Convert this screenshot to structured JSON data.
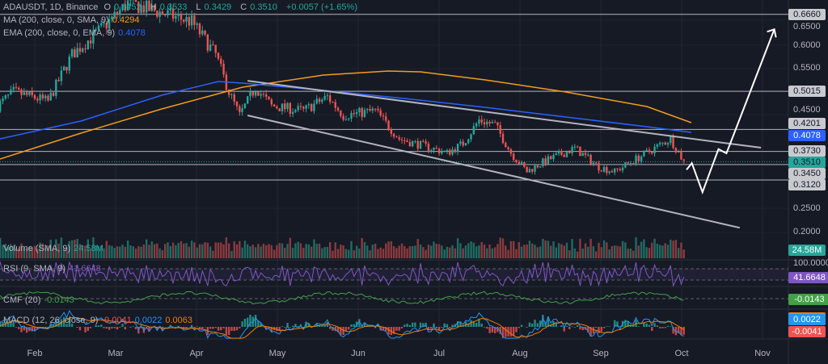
{
  "header": {
    "symbol": "ADAUSDT, 1D, Binance",
    "open_label": "O",
    "open": "0.3452",
    "high_label": "H",
    "high": "0.3533",
    "low_label": "L",
    "low": "0.3429",
    "close_label": "C",
    "close": "0.3510",
    "change": "+0.0057 (+1.65%)"
  },
  "indicators": {
    "ma": {
      "label": "MA (200, close, 0, SMA, 9)",
      "value": "0.4294",
      "color": "#f59c1a"
    },
    "ema": {
      "label": "EMA (200, close, 0, EMA, 9)",
      "value": "0.4078",
      "color": "#2962ff"
    },
    "volume": {
      "label": "Volume (SMA, 9)",
      "value": "24.58M"
    },
    "rsi": {
      "label": "RSI (9, SMA, 9)",
      "value": "41.6648",
      "color": "#7e57c2",
      "top": "100.0000"
    },
    "cmf": {
      "label": "CMF (20)",
      "value": "-0.0143",
      "color": "#43a047"
    },
    "macd": {
      "label": "MACD (12, 26, close, 9)",
      "hist": "-0.0041",
      "macd": "0.0022",
      "signal": "0.0063"
    }
  },
  "price_axis": {
    "ticks": [
      "0.6500",
      "0.6000",
      "0.5500",
      "0.4500",
      "0.2500",
      "0.2000"
    ]
  },
  "tags": {
    "l6660": "0.6660",
    "l5015": "0.5015",
    "l4201": "0.4201",
    "ema": "0.4078",
    "l3730": "0.3730",
    "last": "0.3510",
    "l3450": "0.3450",
    "l3120": "0.3120",
    "vol": "24.58M",
    "rsi": "41.6648",
    "cmf": "-0.0143",
    "macd": "0.0022",
    "hist": "-0.0041"
  },
  "time_axis": [
    "Feb",
    "Mar",
    "Apr",
    "May",
    "Jun",
    "Jul",
    "Aug",
    "Sep",
    "Oct",
    "Nov"
  ],
  "chart_data": {
    "type": "candlestick",
    "symbol": "ADAUSDT",
    "interval": "1D",
    "ylim": [
      0.18,
      0.69
    ],
    "horizontal_levels": [
      0.666,
      0.5015,
      0.4201,
      0.373,
      0.345,
      0.312
    ],
    "trendlines": [
      {
        "from": [
          "2023-04-22",
          0.524
        ],
        "to": [
          "2023-11-01",
          0.381
        ]
      },
      {
        "from": [
          "2023-04-22",
          0.45
        ],
        "to": [
          "2023-10-24",
          0.21
        ]
      }
    ],
    "projection": [
      [
        "2023-10-04",
        0.334
      ],
      [
        "2023-10-06",
        0.348
      ],
      [
        "2023-10-10",
        0.286
      ],
      [
        "2023-10-16",
        0.378
      ],
      [
        "2023-10-19",
        0.369
      ],
      [
        "2023-11-06",
        0.634
      ]
    ],
    "close_path": [
      [
        "2023-01-18",
        0.47
      ],
      [
        "2023-01-24",
        0.5
      ],
      [
        "2023-02-06",
        0.48
      ],
      [
        "2023-02-15",
        0.58
      ],
      [
        "2023-02-27",
        0.64
      ],
      [
        "2023-03-08",
        0.69
      ],
      [
        "2023-03-20",
        0.67
      ],
      [
        "2023-04-01",
        0.65
      ],
      [
        "2023-04-10",
        0.58
      ],
      [
        "2023-04-15",
        0.5
      ],
      [
        "2023-04-19",
        0.45
      ],
      [
        "2023-04-25",
        0.51
      ],
      [
        "2023-05-01",
        0.47
      ],
      [
        "2023-05-13",
        0.46
      ],
      [
        "2023-05-22",
        0.49
      ],
      [
        "2023-05-28",
        0.45
      ],
      [
        "2023-06-09",
        0.46
      ],
      [
        "2023-06-18",
        0.4
      ],
      [
        "2023-06-30",
        0.38
      ],
      [
        "2023-07-06",
        0.37
      ],
      [
        "2023-07-12",
        0.39
      ],
      [
        "2023-07-18",
        0.44
      ],
      [
        "2023-07-24",
        0.43
      ],
      [
        "2023-07-30",
        0.37
      ],
      [
        "2023-08-05",
        0.33
      ],
      [
        "2023-08-11",
        0.35
      ],
      [
        "2023-08-23",
        0.38
      ],
      [
        "2023-09-01",
        0.34
      ],
      [
        "2023-09-07",
        0.33
      ],
      [
        "2023-09-16",
        0.36
      ],
      [
        "2023-09-25",
        0.39
      ],
      [
        "2023-09-28",
        0.4
      ],
      [
        "2023-10-03",
        0.351
      ]
    ]
  }
}
